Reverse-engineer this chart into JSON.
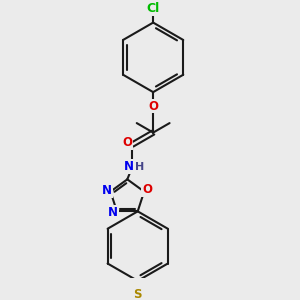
{
  "bg_color": "#ebebeb",
  "bond_color": "#1a1a1a",
  "bond_width": 1.5,
  "atom_colors": {
    "Cl": "#00bb00",
    "O": "#dd0000",
    "N": "#0000ee",
    "S": "#aa8800",
    "C": "#1a1a1a",
    "H": "#444488"
  },
  "font_size": 8.5,
  "fig_size": [
    3.0,
    3.0
  ],
  "dpi": 100
}
